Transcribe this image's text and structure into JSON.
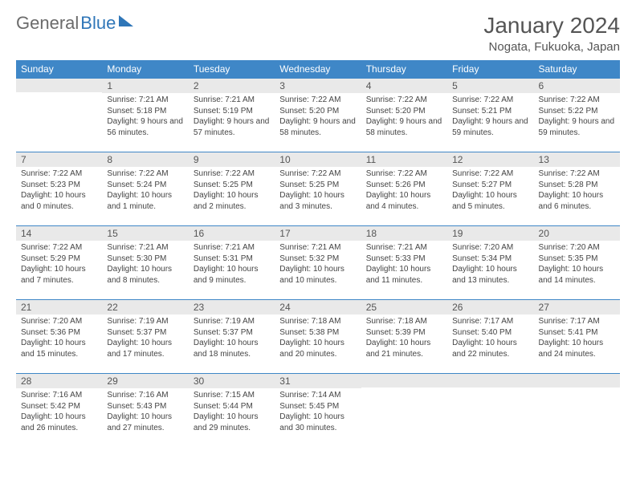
{
  "logo": {
    "word1": "General",
    "word2": "Blue"
  },
  "title": "January 2024",
  "location": "Nogata, Fukuoka, Japan",
  "days_of_week": [
    "Sunday",
    "Monday",
    "Tuesday",
    "Wednesday",
    "Thursday",
    "Friday",
    "Saturday"
  ],
  "colors": {
    "header_bg": "#3f87c7",
    "header_text": "#ffffff",
    "daynum_bg": "#e9e9e9",
    "row_border": "#3f87c7",
    "logo_gray": "#6b6b6b",
    "logo_blue": "#2f76b8"
  },
  "weeks": [
    [
      {
        "n": "",
        "sunrise": "",
        "sunset": "",
        "daylight": ""
      },
      {
        "n": "1",
        "sunrise": "Sunrise: 7:21 AM",
        "sunset": "Sunset: 5:18 PM",
        "daylight": "Daylight: 9 hours and 56 minutes."
      },
      {
        "n": "2",
        "sunrise": "Sunrise: 7:21 AM",
        "sunset": "Sunset: 5:19 PM",
        "daylight": "Daylight: 9 hours and 57 minutes."
      },
      {
        "n": "3",
        "sunrise": "Sunrise: 7:22 AM",
        "sunset": "Sunset: 5:20 PM",
        "daylight": "Daylight: 9 hours and 58 minutes."
      },
      {
        "n": "4",
        "sunrise": "Sunrise: 7:22 AM",
        "sunset": "Sunset: 5:20 PM",
        "daylight": "Daylight: 9 hours and 58 minutes."
      },
      {
        "n": "5",
        "sunrise": "Sunrise: 7:22 AM",
        "sunset": "Sunset: 5:21 PM",
        "daylight": "Daylight: 9 hours and 59 minutes."
      },
      {
        "n": "6",
        "sunrise": "Sunrise: 7:22 AM",
        "sunset": "Sunset: 5:22 PM",
        "daylight": "Daylight: 9 hours and 59 minutes."
      }
    ],
    [
      {
        "n": "7",
        "sunrise": "Sunrise: 7:22 AM",
        "sunset": "Sunset: 5:23 PM",
        "daylight": "Daylight: 10 hours and 0 minutes."
      },
      {
        "n": "8",
        "sunrise": "Sunrise: 7:22 AM",
        "sunset": "Sunset: 5:24 PM",
        "daylight": "Daylight: 10 hours and 1 minute."
      },
      {
        "n": "9",
        "sunrise": "Sunrise: 7:22 AM",
        "sunset": "Sunset: 5:25 PM",
        "daylight": "Daylight: 10 hours and 2 minutes."
      },
      {
        "n": "10",
        "sunrise": "Sunrise: 7:22 AM",
        "sunset": "Sunset: 5:25 PM",
        "daylight": "Daylight: 10 hours and 3 minutes."
      },
      {
        "n": "11",
        "sunrise": "Sunrise: 7:22 AM",
        "sunset": "Sunset: 5:26 PM",
        "daylight": "Daylight: 10 hours and 4 minutes."
      },
      {
        "n": "12",
        "sunrise": "Sunrise: 7:22 AM",
        "sunset": "Sunset: 5:27 PM",
        "daylight": "Daylight: 10 hours and 5 minutes."
      },
      {
        "n": "13",
        "sunrise": "Sunrise: 7:22 AM",
        "sunset": "Sunset: 5:28 PM",
        "daylight": "Daylight: 10 hours and 6 minutes."
      }
    ],
    [
      {
        "n": "14",
        "sunrise": "Sunrise: 7:22 AM",
        "sunset": "Sunset: 5:29 PM",
        "daylight": "Daylight: 10 hours and 7 minutes."
      },
      {
        "n": "15",
        "sunrise": "Sunrise: 7:21 AM",
        "sunset": "Sunset: 5:30 PM",
        "daylight": "Daylight: 10 hours and 8 minutes."
      },
      {
        "n": "16",
        "sunrise": "Sunrise: 7:21 AM",
        "sunset": "Sunset: 5:31 PM",
        "daylight": "Daylight: 10 hours and 9 minutes."
      },
      {
        "n": "17",
        "sunrise": "Sunrise: 7:21 AM",
        "sunset": "Sunset: 5:32 PM",
        "daylight": "Daylight: 10 hours and 10 minutes."
      },
      {
        "n": "18",
        "sunrise": "Sunrise: 7:21 AM",
        "sunset": "Sunset: 5:33 PM",
        "daylight": "Daylight: 10 hours and 11 minutes."
      },
      {
        "n": "19",
        "sunrise": "Sunrise: 7:20 AM",
        "sunset": "Sunset: 5:34 PM",
        "daylight": "Daylight: 10 hours and 13 minutes."
      },
      {
        "n": "20",
        "sunrise": "Sunrise: 7:20 AM",
        "sunset": "Sunset: 5:35 PM",
        "daylight": "Daylight: 10 hours and 14 minutes."
      }
    ],
    [
      {
        "n": "21",
        "sunrise": "Sunrise: 7:20 AM",
        "sunset": "Sunset: 5:36 PM",
        "daylight": "Daylight: 10 hours and 15 minutes."
      },
      {
        "n": "22",
        "sunrise": "Sunrise: 7:19 AM",
        "sunset": "Sunset: 5:37 PM",
        "daylight": "Daylight: 10 hours and 17 minutes."
      },
      {
        "n": "23",
        "sunrise": "Sunrise: 7:19 AM",
        "sunset": "Sunset: 5:37 PM",
        "daylight": "Daylight: 10 hours and 18 minutes."
      },
      {
        "n": "24",
        "sunrise": "Sunrise: 7:18 AM",
        "sunset": "Sunset: 5:38 PM",
        "daylight": "Daylight: 10 hours and 20 minutes."
      },
      {
        "n": "25",
        "sunrise": "Sunrise: 7:18 AM",
        "sunset": "Sunset: 5:39 PM",
        "daylight": "Daylight: 10 hours and 21 minutes."
      },
      {
        "n": "26",
        "sunrise": "Sunrise: 7:17 AM",
        "sunset": "Sunset: 5:40 PM",
        "daylight": "Daylight: 10 hours and 22 minutes."
      },
      {
        "n": "27",
        "sunrise": "Sunrise: 7:17 AM",
        "sunset": "Sunset: 5:41 PM",
        "daylight": "Daylight: 10 hours and 24 minutes."
      }
    ],
    [
      {
        "n": "28",
        "sunrise": "Sunrise: 7:16 AM",
        "sunset": "Sunset: 5:42 PM",
        "daylight": "Daylight: 10 hours and 26 minutes."
      },
      {
        "n": "29",
        "sunrise": "Sunrise: 7:16 AM",
        "sunset": "Sunset: 5:43 PM",
        "daylight": "Daylight: 10 hours and 27 minutes."
      },
      {
        "n": "30",
        "sunrise": "Sunrise: 7:15 AM",
        "sunset": "Sunset: 5:44 PM",
        "daylight": "Daylight: 10 hours and 29 minutes."
      },
      {
        "n": "31",
        "sunrise": "Sunrise: 7:14 AM",
        "sunset": "Sunset: 5:45 PM",
        "daylight": "Daylight: 10 hours and 30 minutes."
      },
      {
        "n": "",
        "sunrise": "",
        "sunset": "",
        "daylight": ""
      },
      {
        "n": "",
        "sunrise": "",
        "sunset": "",
        "daylight": ""
      },
      {
        "n": "",
        "sunrise": "",
        "sunset": "",
        "daylight": ""
      }
    ]
  ]
}
